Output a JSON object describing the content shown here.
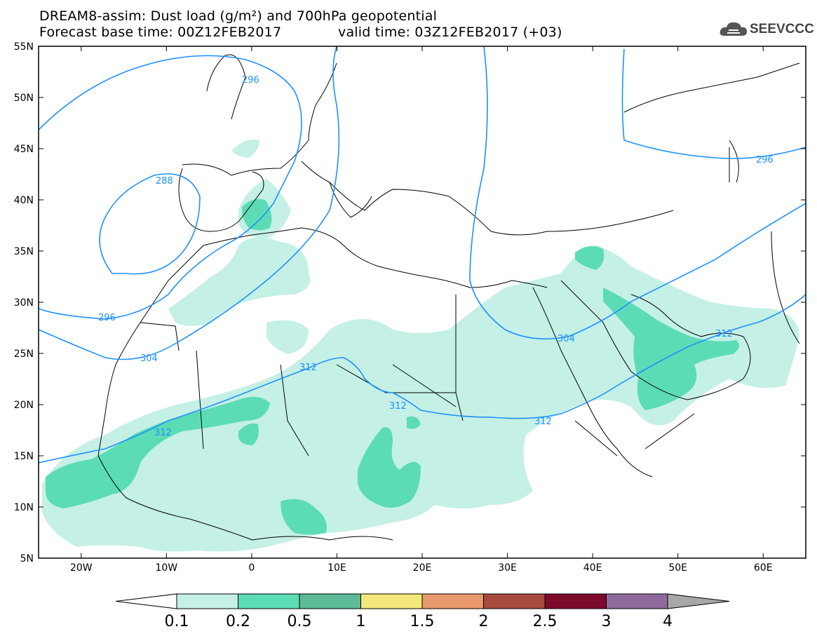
{
  "header": {
    "title_line1": "DREAM8-assim: Dust load (g/m²) and 700hPa geopotential",
    "title_line2_left": "Forecast base time: 00Z12FEB2017",
    "title_line2_right": "valid time: 03Z12FEB2017 (+03)",
    "logo_text": "SEEVCCC",
    "logo_icon": "cloud-icon"
  },
  "map": {
    "lat_ticks": [
      "55N",
      "50N",
      "45N",
      "40N",
      "35N",
      "30N",
      "25N",
      "20N",
      "15N",
      "10N",
      "5N"
    ],
    "lon_ticks": [
      "20W",
      "10W",
      "0",
      "10E",
      "20E",
      "30E",
      "40E",
      "50E",
      "60E"
    ],
    "lon_range": [
      -25,
      65
    ],
    "lat_range": [
      5,
      55
    ],
    "contour_color": "#1e90ff",
    "contour_labels": [
      "296",
      "288",
      "296",
      "304",
      "312",
      "312",
      "312",
      "312",
      "304",
      "312",
      "296"
    ]
  },
  "colorbar": {
    "labels": [
      "0.1",
      "0.2",
      "0.5",
      "1",
      "1.5",
      "2",
      "2.5",
      "3",
      "4"
    ],
    "colors": [
      "#ffffff",
      "#c5f0e6",
      "#5cdcb4",
      "#5dbb98",
      "#f5e87a",
      "#e89a6e",
      "#a84b3f",
      "#7d0a2b",
      "#8e6b9c",
      "#a7a7a7"
    ]
  }
}
